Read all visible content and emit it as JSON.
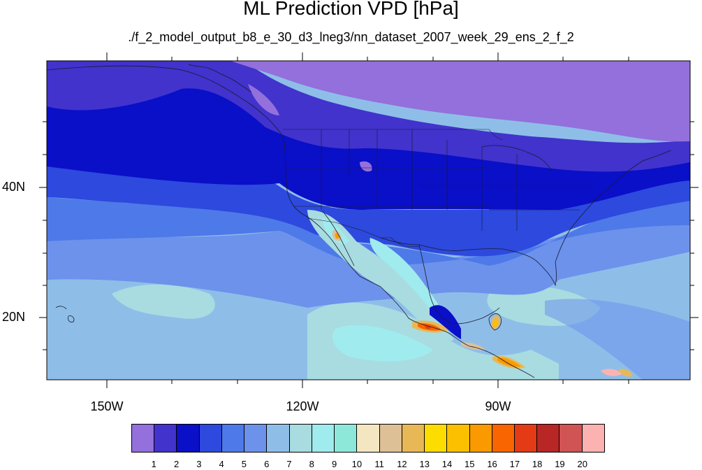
{
  "title": "ML Prediction VPD [hPa]",
  "subtitle": "./f_2_model_output_b8_e_30_d3_lneg3/nn_dataset_2007_week_29_ens_2_f_2",
  "lat_labels": [
    "40N",
    "20N"
  ],
  "lon_labels": [
    "150W",
    "120W",
    "90W"
  ],
  "colorbar": {
    "labels": [
      "1",
      "2",
      "3",
      "4",
      "5",
      "6",
      "7",
      "8",
      "9",
      "10",
      "11",
      "12",
      "13",
      "14",
      "15",
      "16",
      "17",
      "18",
      "19",
      "20"
    ],
    "colors": [
      "#9370DB",
      "#4133CC",
      "#0A0FC8",
      "#2D49DE",
      "#4E79E8",
      "#6C92EC",
      "#8EBEE8",
      "#A8DCE0",
      "#A0EBEE",
      "#8EE8DA",
      "#F3E6C0",
      "#DEC096",
      "#E8B856",
      "#FDDC00",
      "#FDC000",
      "#FA9A00",
      "#F96500",
      "#E43A16",
      "#B82626",
      "#D05454",
      "#FDB2B2"
    ]
  }
}
